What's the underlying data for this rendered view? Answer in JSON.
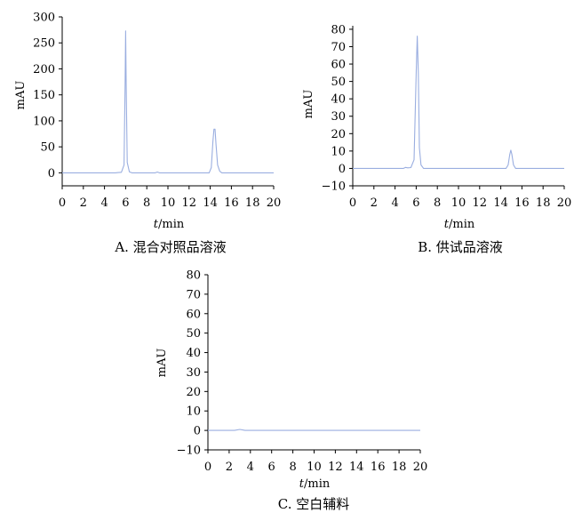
{
  "chart_data": [
    {
      "type": "line",
      "caption": "A. 混合对照品溶液",
      "xlabel_italic": "t",
      "xlabel_rest": "/min",
      "ylabel": "mAU",
      "xlim": [
        0,
        20
      ],
      "ylim": [
        -25,
        300
      ],
      "xticks": [
        0,
        2,
        4,
        6,
        8,
        10,
        12,
        14,
        16,
        18,
        20
      ],
      "yticks": [
        0,
        50,
        100,
        150,
        200,
        250,
        300
      ],
      "grid": false,
      "line_color": "#9aaee0",
      "series": [
        {
          "x": [
            0,
            5.0,
            5.3,
            5.6,
            5.85,
            5.95,
            6.0,
            6.05,
            6.15,
            6.35,
            6.6,
            8.8,
            9.0,
            9.2,
            13.9,
            14.1,
            14.25,
            14.35,
            14.45,
            14.55,
            14.7,
            14.9,
            15.1,
            20
          ],
          "y": [
            0,
            0,
            0.5,
            1,
            15,
            170,
            273,
            170,
            20,
            2,
            0,
            0,
            1.5,
            0,
            0,
            10,
            60,
            84,
            84,
            55,
            15,
            3,
            0,
            0
          ]
        }
      ]
    },
    {
      "type": "line",
      "caption": "B. 供试品溶液",
      "xlabel_italic": "t",
      "xlabel_rest": "/min",
      "ylabel": "mAU",
      "xlim": [
        0,
        20
      ],
      "ylim": [
        -10,
        82
      ],
      "xticks": [
        0,
        2,
        4,
        6,
        8,
        10,
        12,
        14,
        16,
        18,
        20
      ],
      "yticks": [
        -10,
        0,
        10,
        20,
        30,
        40,
        50,
        60,
        70,
        80
      ],
      "grid": false,
      "line_color": "#9aaee0",
      "series": [
        {
          "x": [
            0,
            4.8,
            5.0,
            5.2,
            5.5,
            5.8,
            6.0,
            6.1,
            6.2,
            6.3,
            6.45,
            6.7,
            14.5,
            14.7,
            14.85,
            14.95,
            15.05,
            15.2,
            15.4,
            20
          ],
          "y": [
            0,
            0,
            0.6,
            0.3,
            0.5,
            5,
            55,
            76,
            55,
            12,
            2,
            0,
            0,
            2,
            8,
            10.5,
            8,
            2,
            0,
            0
          ]
        }
      ]
    },
    {
      "type": "line",
      "caption": "C. 空白辅料",
      "xlabel_italic": "t",
      "xlabel_rest": "/min",
      "ylabel": "mAU",
      "xlim": [
        0,
        20
      ],
      "ylim": [
        -10,
        80
      ],
      "xticks": [
        0,
        2,
        4,
        6,
        8,
        10,
        12,
        14,
        16,
        18,
        20
      ],
      "yticks": [
        -10,
        0,
        10,
        20,
        30,
        40,
        50,
        60,
        70,
        80
      ],
      "grid": false,
      "line_color": "#9aaee0",
      "series": [
        {
          "x": [
            0,
            2.5,
            3.0,
            3.5,
            20
          ],
          "y": [
            0,
            0,
            0.5,
            0,
            0
          ]
        }
      ]
    }
  ]
}
